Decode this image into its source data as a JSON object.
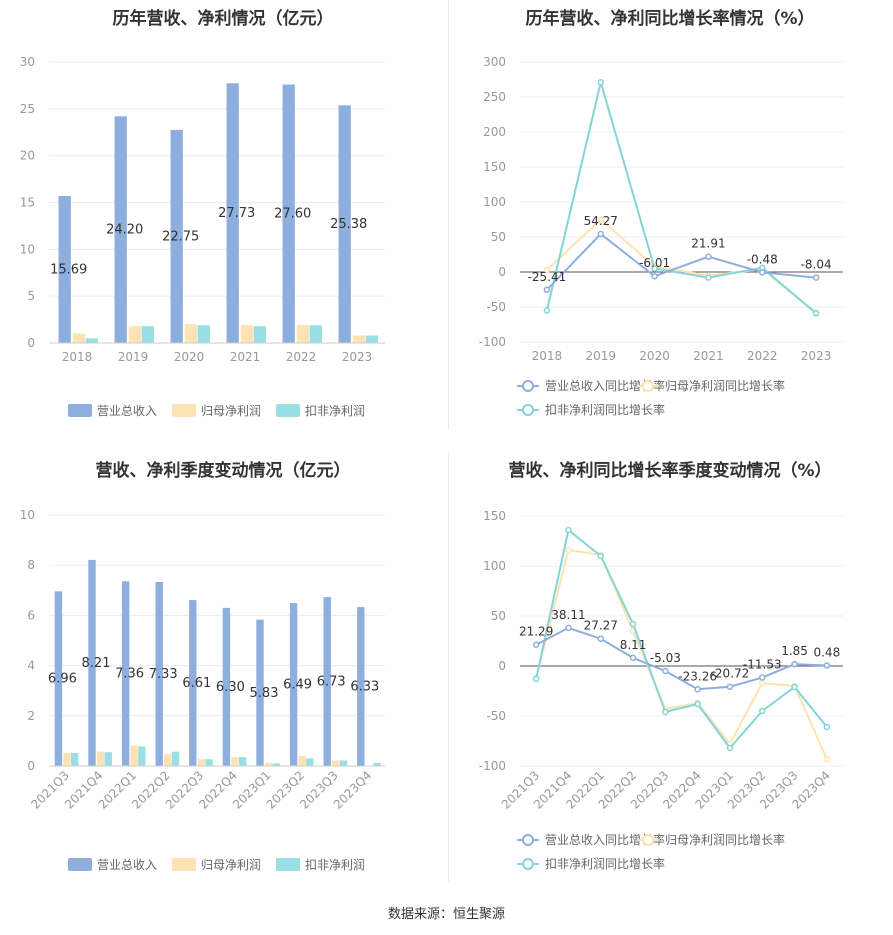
{
  "colors": {
    "revenue": "#8eaedd",
    "net_profit": "#fde3b4",
    "deducted_profit": "#9adfe3",
    "revenue_line": "#8eaedd",
    "net_profit_line": "#fde3b4",
    "deducted_profit_line": "#83d5d8",
    "axis_text": "#999999",
    "grid": "#e8ecf3",
    "zero_line": "#555555",
    "label": "#333333"
  },
  "source_text": "数据来源：恒生聚源",
  "chart_data": [
    {
      "type": "bar",
      "title": "历年营收、净利情况（亿元）",
      "categories": [
        "2018",
        "2019",
        "2020",
        "2021",
        "2022",
        "2023"
      ],
      "ylim": [
        0,
        30
      ],
      "yticks": [
        0,
        5,
        10,
        15,
        20,
        25,
        30
      ],
      "grid": true,
      "legend_position": "bottom",
      "series": [
        {
          "name": "营业总收入",
          "values": [
            15.69,
            24.2,
            22.75,
            27.73,
            27.6,
            25.38
          ],
          "labels": [
            "15.69",
            "24.20",
            "22.75",
            "27.73",
            "27.60",
            "25.38"
          ]
        },
        {
          "name": "归母净利润",
          "values": [
            1.0,
            1.8,
            2.0,
            1.9,
            1.9,
            0.8
          ]
        },
        {
          "name": "扣非净利润",
          "values": [
            0.5,
            1.8,
            1.9,
            1.8,
            1.9,
            0.8
          ]
        }
      ]
    },
    {
      "type": "line",
      "title": "历年营收、净利同比增长率情况（%）",
      "categories": [
        "2018",
        "2019",
        "2020",
        "2021",
        "2022",
        "2023"
      ],
      "ylim": [
        -100,
        300
      ],
      "yticks": [
        -100,
        -50,
        0,
        50,
        100,
        150,
        200,
        250,
        300
      ],
      "grid": true,
      "legend_position": "bottom",
      "series": [
        {
          "name": "营业总收入同比增长率",
          "values": [
            -25.41,
            54.27,
            -6.01,
            21.91,
            -0.48,
            -8.04
          ],
          "labels": [
            "-25.41",
            "54.27",
            "-6.01",
            "21.91",
            "-0.48",
            "-8.04"
          ]
        },
        {
          "name": "归母净利润同比增长率",
          "values": [
            3,
            75,
            8,
            -5,
            4,
            -58
          ]
        },
        {
          "name": "扣非净利润同比增长率",
          "values": [
            -55,
            271,
            5,
            -8,
            6,
            -59
          ]
        }
      ]
    },
    {
      "type": "bar",
      "title": "营收、净利季度变动情况（亿元）",
      "categories": [
        "2021Q3",
        "2021Q4",
        "2022Q1",
        "2022Q2",
        "2022Q3",
        "2022Q4",
        "2023Q1",
        "2023Q2",
        "2023Q3",
        "2023Q4"
      ],
      "ylim": [
        0,
        10
      ],
      "yticks": [
        0,
        2,
        4,
        6,
        8,
        10
      ],
      "grid": true,
      "legend_position": "bottom",
      "series": [
        {
          "name": "营业总收入",
          "values": [
            6.96,
            8.21,
            7.36,
            7.33,
            6.61,
            6.3,
            5.83,
            6.49,
            6.73,
            6.33
          ],
          "labels": [
            "6.96",
            "8.21",
            "7.36",
            "7.33",
            "6.61",
            "6.30",
            "5.83",
            "6.49",
            "6.73",
            "6.33"
          ]
        },
        {
          "name": "归母净利润",
          "values": [
            0.52,
            0.58,
            0.82,
            0.48,
            0.27,
            0.35,
            0.13,
            0.4,
            0.22,
            0.02
          ]
        },
        {
          "name": "扣非净利润",
          "values": [
            0.52,
            0.55,
            0.78,
            0.57,
            0.27,
            0.35,
            0.1,
            0.3,
            0.22,
            0.12
          ]
        }
      ]
    },
    {
      "type": "line",
      "title": "营收、净利同比增长率季度变动情况（%）",
      "categories": [
        "2021Q3",
        "2021Q4",
        "2022Q1",
        "2022Q2",
        "2022Q3",
        "2022Q4",
        "2023Q1",
        "2023Q2",
        "2023Q3",
        "2023Q4"
      ],
      "ylim": [
        -100,
        150
      ],
      "yticks": [
        -100,
        -50,
        0,
        50,
        100,
        150
      ],
      "grid": true,
      "legend_position": "bottom",
      "series": [
        {
          "name": "营业总收入同比增长率",
          "values": [
            21.29,
            38.11,
            27.27,
            8.11,
            -5.03,
            -23.26,
            -20.72,
            -11.53,
            1.85,
            0.48
          ],
          "labels": [
            "21.29",
            "38.11",
            "27.27",
            "8.11",
            "-5.03",
            "-23.26",
            "-20.72",
            "-11.53",
            "1.85",
            "0.48"
          ]
        },
        {
          "name": "归母净利润同比增长率",
          "values": [
            -12,
            116,
            111,
            35,
            -43,
            -37,
            -78,
            -17,
            -20,
            -93
          ]
        },
        {
          "name": "扣非净利润同比增长率",
          "values": [
            -13,
            136,
            110,
            42,
            -46,
            -38,
            -82,
            -45,
            -21,
            -61
          ]
        }
      ]
    }
  ]
}
